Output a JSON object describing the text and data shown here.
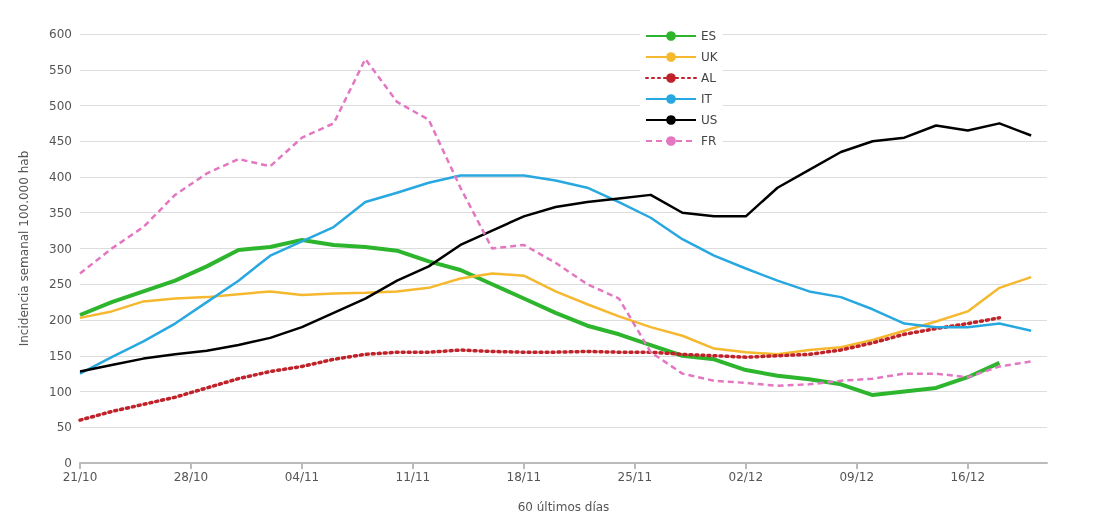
{
  "chart_data": {
    "type": "line",
    "xlabel": "60 últimos días",
    "ylabel": "Incidencia semanal 100.000 hab",
    "x": [
      "--10-21",
      "--10-23",
      "--10-25",
      "--10-27",
      "--10-29",
      "--10-31",
      "--11-02",
      "--11-04",
      "--11-06",
      "--11-08",
      "--11-10",
      "--11-12",
      "--11-14",
      "--11-16",
      "--11-18",
      "--11-20",
      "--11-22",
      "--11-24",
      "--11-26",
      "--11-28",
      "--11-30",
      "--12-02",
      "--12-04",
      "--12-06",
      "--12-08",
      "--12-10",
      "--12-12",
      "--12-14",
      "--12-16",
      "--12-18",
      "--12-20"
    ],
    "series": [
      {
        "name": "ES",
        "color": "#2db52d",
        "line_style": "solid",
        "values": [
          207,
          225,
          240,
          255,
          275,
          298,
          302,
          312,
          305,
          302,
          297,
          282,
          270,
          250,
          230,
          210,
          192,
          180,
          165,
          150,
          145,
          130,
          122,
          117,
          110,
          95,
          100,
          105,
          120,
          140,
          null
        ]
      },
      {
        "name": "UK",
        "color": "#f5b82e",
        "line_style": "solid",
        "values": [
          203,
          212,
          226,
          230,
          232,
          236,
          240,
          235,
          237,
          238,
          240,
          245,
          258,
          265,
          262,
          240,
          222,
          205,
          190,
          178,
          160,
          155,
          152,
          158,
          162,
          172,
          185,
          198,
          212,
          245,
          260
        ]
      },
      {
        "name": "AL",
        "color": "#c0222a",
        "line_style": "dotted",
        "values": [
          60,
          72,
          82,
          92,
          105,
          118,
          128,
          135,
          145,
          152,
          155,
          155,
          158,
          156,
          155,
          155,
          156,
          155,
          155,
          152,
          150,
          148,
          150,
          152,
          158,
          168,
          180,
          188,
          195,
          203,
          null
        ]
      },
      {
        "name": "IT",
        "color": "#28a8e0",
        "line_style": "solid",
        "values": [
          125,
          148,
          170,
          195,
          225,
          255,
          290,
          310,
          330,
          365,
          378,
          392,
          402,
          402,
          402,
          395,
          385,
          365,
          343,
          313,
          290,
          272,
          255,
          240,
          232,
          215,
          195,
          190,
          190,
          195,
          185
        ]
      },
      {
        "name": "US",
        "color": "#000000",
        "line_style": "solid",
        "values": [
          128,
          137,
          146,
          152,
          157,
          165,
          175,
          190,
          210,
          230,
          255,
          275,
          305,
          325,
          345,
          358,
          365,
          370,
          375,
          350,
          345,
          345,
          385,
          410,
          435,
          450,
          455,
          472,
          465,
          475,
          458
        ]
      },
      {
        "name": "FR",
        "color": "#e377c2",
        "line_style": "dashed",
        "values": [
          265,
          300,
          330,
          375,
          405,
          425,
          415,
          455,
          475,
          565,
          505,
          480,
          385,
          300,
          305,
          280,
          250,
          230,
          155,
          125,
          115,
          112,
          108,
          110,
          115,
          118,
          125,
          125,
          120,
          135,
          142
        ]
      }
    ],
    "xlim": [
      "--10-21",
      "--12-21"
    ],
    "xticks": [
      {
        "value": "--10-21",
        "label": "21/10"
      },
      {
        "value": "--10-28",
        "label": "28/10"
      },
      {
        "value": "--11-04",
        "label": "04/11"
      },
      {
        "value": "--11-11",
        "label": "11/11"
      },
      {
        "value": "--11-18",
        "label": "18/11"
      },
      {
        "value": "--11-25",
        "label": "25/11"
      },
      {
        "value": "--12-02",
        "label": "02/12"
      },
      {
        "value": "--12-09",
        "label": "09/12"
      },
      {
        "value": "--12-16",
        "label": "16/12"
      }
    ],
    "ylim": [
      0,
      600
    ],
    "yticks": [
      0,
      50,
      100,
      150,
      200,
      250,
      300,
      350,
      400,
      450,
      500,
      550,
      600
    ],
    "grid": "y",
    "legend": "top right",
    "marker": "none"
  }
}
